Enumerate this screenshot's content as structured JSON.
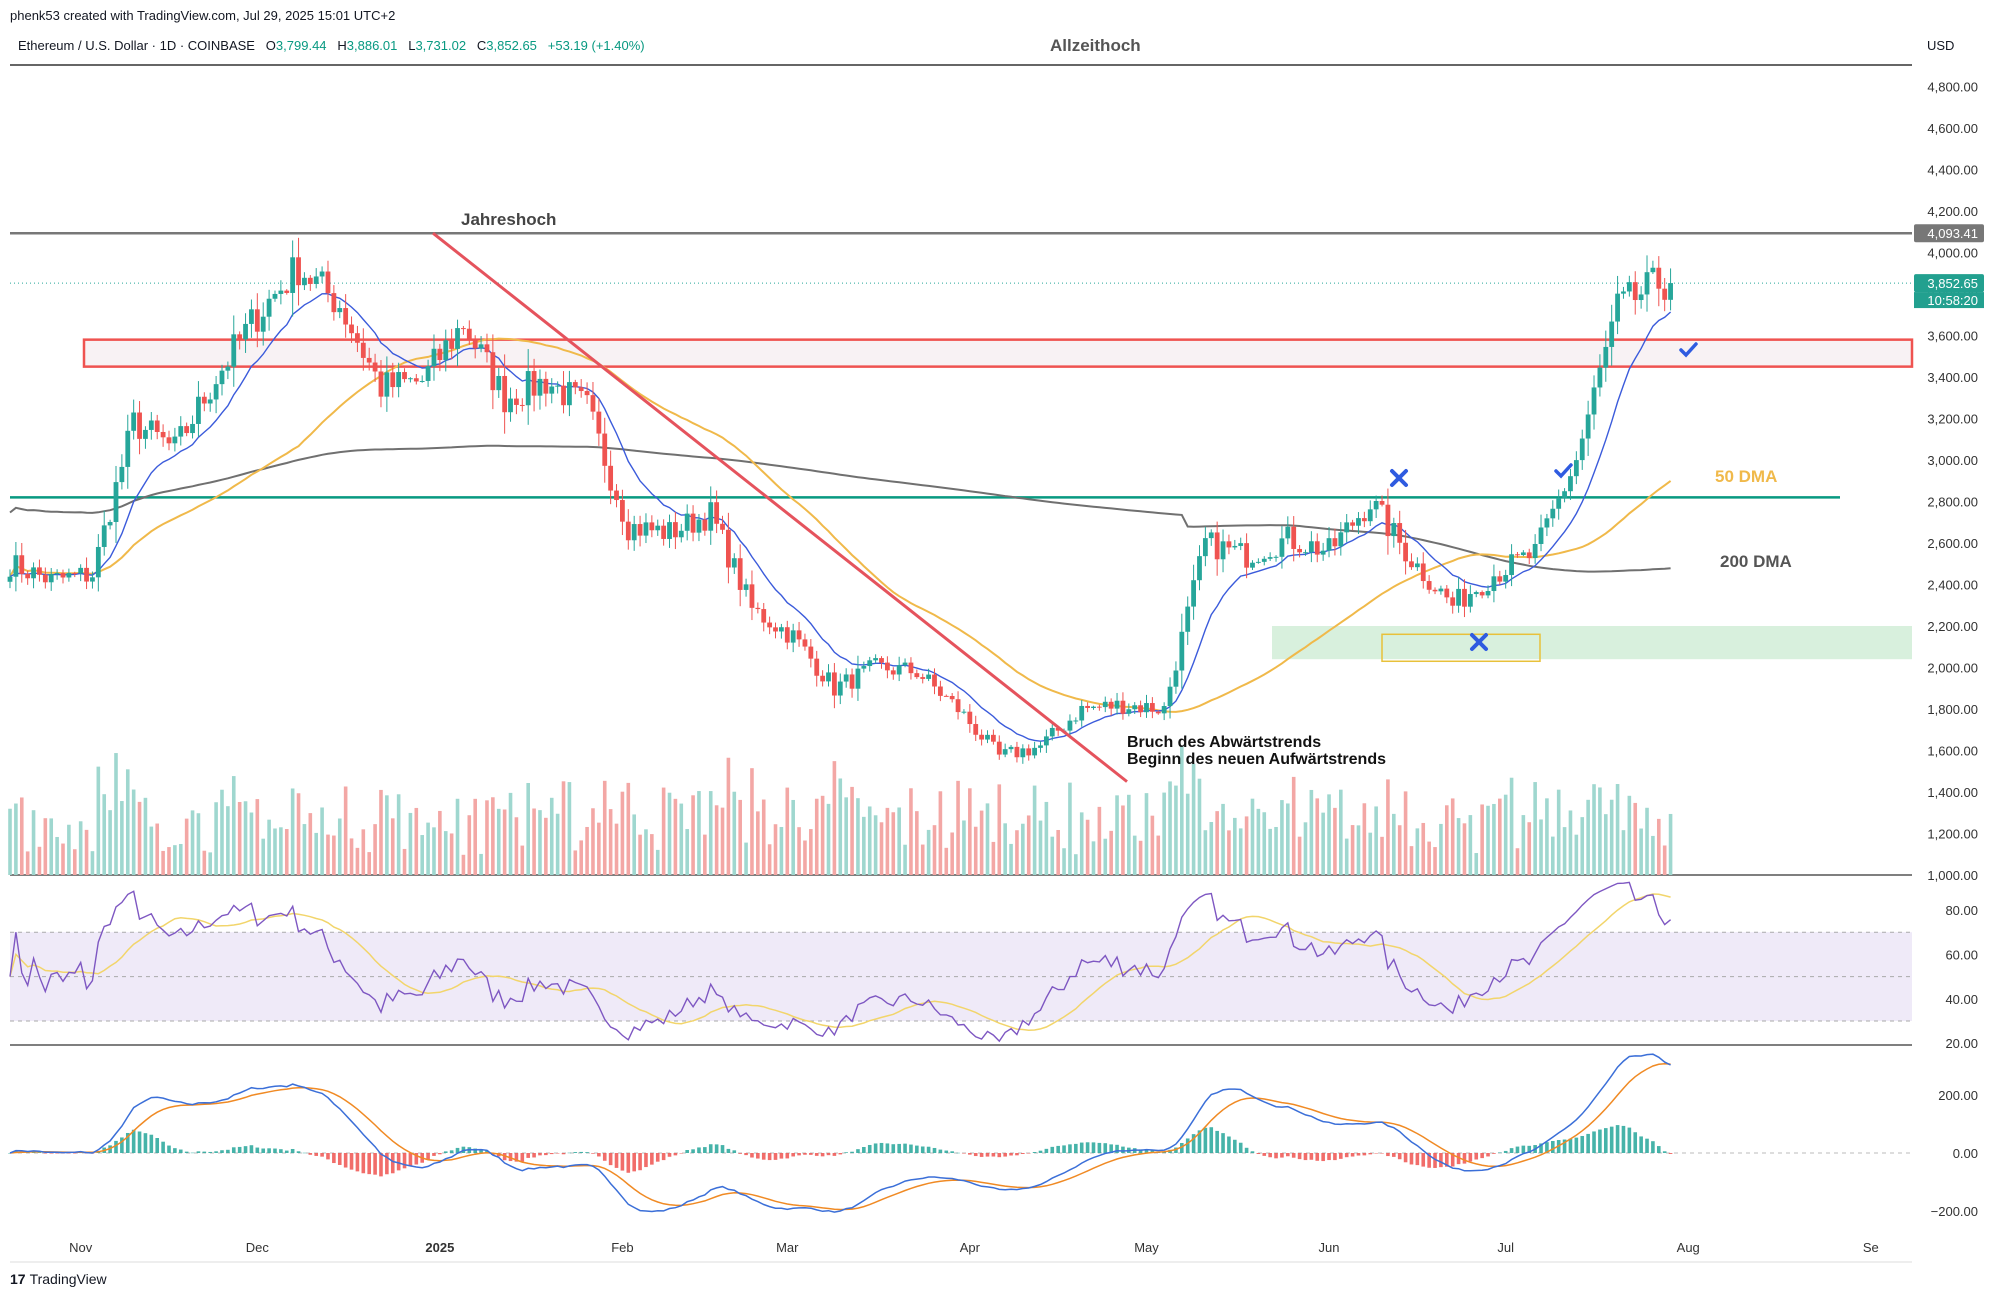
{
  "header": {
    "credit": "phenk53 created with TradingView.com, Jul 29, 2025 15:01 UTC+2",
    "symbol": "Ethereum / U.S. Dollar · 1D · COINBASE",
    "ohlc": {
      "o_label": "O",
      "o": "3,799.44",
      "h_label": "H",
      "h": "3,886.01",
      "l_label": "L",
      "l": "3,731.02",
      "c_label": "C",
      "c": "3,852.65",
      "change": "+53.19 (+1.40%)"
    },
    "currency": "USD"
  },
  "footer": {
    "brand": "TradingView",
    "brand_mark": "17"
  },
  "colors": {
    "up": "#26a69a",
    "down": "#ef5350",
    "ema": "#3b5bdb",
    "dma50": "#f0b94a",
    "dma200": "#707070",
    "trendline": "#e5535d",
    "support": "#089981",
    "rsi": "#7e57c2",
    "macd": "#3b6fd8",
    "signal": "#f08a24",
    "zone_green": "#d8f0dd",
    "zone_red": "#f8f2f4"
  },
  "chart_data": [
    {
      "type": "candlestick",
      "title": "Allzeithoch",
      "symbol": "ETH/USD",
      "ylim": [
        1000,
        4900
      ],
      "y_ticks": [
        "4,800.00",
        "4,600.00",
        "4,400.00",
        "4,200.00",
        "4,000.00",
        "3,800.00",
        "3,600.00",
        "3,400.00",
        "3,200.00",
        "3,000.00",
        "2,800.00",
        "2,600.00",
        "2,400.00",
        "2,200.00",
        "2,000.00",
        "1,800.00",
        "1,600.00",
        "1,400.00",
        "1,200.00",
        "1,000.00"
      ],
      "x_ticks": [
        "Nov",
        "Dec",
        "2025",
        "Feb",
        "Mar",
        "Apr",
        "May",
        "Jun",
        "Jul",
        "Aug",
        "Se"
      ],
      "x_range": [
        "2024-10-20",
        "2025-09-08"
      ],
      "price_labels": {
        "high": "4,093.41",
        "last": "3,852.65",
        "countdown": "10:58:20"
      },
      "weekly_close": [
        [
          "2024-10-20",
          2500
        ],
        [
          "2024-10-27",
          2420
        ],
        [
          "2024-11-03",
          2450
        ],
        [
          "2024-11-10",
          3180
        ],
        [
          "2024-11-17",
          3050
        ],
        [
          "2024-11-24",
          3400
        ],
        [
          "2024-12-01",
          3700
        ],
        [
          "2024-12-08",
          3930
        ],
        [
          "2024-12-15",
          3750
        ],
        [
          "2024-12-22",
          3350
        ],
        [
          "2024-12-29",
          3380
        ],
        [
          "2025-01-05",
          3660
        ],
        [
          "2025-01-12",
          3300
        ],
        [
          "2025-01-19",
          3380
        ],
        [
          "2025-01-26",
          3250
        ],
        [
          "2025-02-02",
          2680
        ],
        [
          "2025-02-09",
          2650
        ],
        [
          "2025-02-16",
          2740
        ],
        [
          "2025-02-23",
          2280
        ],
        [
          "2025-03-02",
          2150
        ],
        [
          "2025-03-09",
          1900
        ],
        [
          "2025-03-16",
          2000
        ],
        [
          "2025-03-23",
          1980
        ],
        [
          "2025-03-30",
          1800
        ],
        [
          "2025-04-06",
          1570
        ],
        [
          "2025-04-13",
          1620
        ],
        [
          "2025-04-20",
          1800
        ],
        [
          "2025-04-27",
          1820
        ],
        [
          "2025-05-04",
          1800
        ],
        [
          "2025-05-11",
          2600
        ],
        [
          "2025-05-18",
          2540
        ],
        [
          "2025-05-25",
          2620
        ],
        [
          "2025-06-01",
          2560
        ],
        [
          "2025-06-08",
          2800
        ],
        [
          "2025-06-15",
          2520
        ],
        [
          "2025-06-22",
          2300
        ],
        [
          "2025-06-29",
          2450
        ],
        [
          "2025-07-06",
          2550
        ],
        [
          "2025-07-13",
          3000
        ],
        [
          "2025-07-20",
          3730
        ],
        [
          "2025-07-27",
          3853
        ]
      ],
      "series": [
        {
          "name": "50 DMA"
        },
        {
          "name": "200 DMA"
        }
      ],
      "levels": [
        {
          "name": "Jahreshoch",
          "value": 4093
        },
        {
          "name": "Allzeithoch",
          "value": 4880
        },
        {
          "name": "support",
          "value": 2820
        }
      ],
      "zones": [
        {
          "name": "resistance",
          "low": 3450,
          "high": 3580
        },
        {
          "name": "demand",
          "low": 2040,
          "high": 2200
        }
      ],
      "annotations": [
        "Jahreshoch",
        "50 DMA",
        "200 DMA",
        "Bruch des Abwärtstrends",
        "Beginn des neuen Aufwärtstrends"
      ]
    },
    {
      "type": "line",
      "name": "RSI",
      "ylim": [
        20,
        85
      ],
      "y_ticks": [
        "80.00",
        "60.00",
        "40.00",
        "20.00"
      ],
      "bands": [
        30,
        50,
        70
      ]
    },
    {
      "type": "bar",
      "name": "MACD",
      "y_ticks": [
        "200.00",
        "0.00",
        "−200.00"
      ]
    }
  ]
}
